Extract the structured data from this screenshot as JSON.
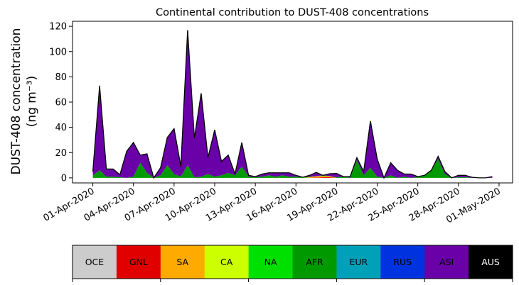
{
  "chart_data": {
    "type": "area",
    "title": "Continental contribution to DUST-408 concentrations",
    "ylabel_line1": "DUST-408 concentration",
    "ylabel_line2": "(ng m⁻³)",
    "xlabel": "",
    "ylim": [
      -4,
      124
    ],
    "y_ticks": [
      0,
      20,
      40,
      60,
      80,
      100,
      120
    ],
    "x_ticks": [
      "01-Apr-2020",
      "04-Apr-2020",
      "07-Apr-2020",
      "10-Apr-2020",
      "13-Apr-2020",
      "16-Apr-2020",
      "19-Apr-2020",
      "22-Apr-2020",
      "25-Apr-2020",
      "28-Apr-2020",
      "01-May-2020"
    ],
    "x_tick_days": [
      0,
      3,
      6,
      9,
      12,
      15,
      18,
      21,
      24,
      27,
      30
    ],
    "xlim_days": [
      -1.5,
      31
    ],
    "grid": false,
    "stacked": true,
    "x_days": [
      0,
      0.5,
      1,
      1.5,
      2,
      2.5,
      3,
      3.5,
      4,
      4.5,
      5,
      5.5,
      6,
      6.5,
      7,
      7.5,
      8,
      8.5,
      9,
      9.5,
      10,
      10.5,
      11,
      11.5,
      12,
      12.5,
      13,
      13.5,
      14,
      14.5,
      15,
      15.5,
      16,
      16.5,
      17,
      17.5,
      18,
      18.5,
      19,
      19.5,
      20,
      20.5,
      21,
      21.5,
      22,
      22.5,
      23,
      23.5,
      24,
      24.5,
      25,
      25.5,
      26,
      26.5,
      27,
      27.5,
      28,
      28.5,
      29,
      29.5
    ],
    "series": [
      {
        "name": "OCE",
        "color": "#cccccc",
        "values": [
          0,
          0,
          0,
          0,
          0,
          0,
          0,
          0,
          0,
          0,
          0,
          0,
          0,
          0,
          0,
          0,
          0,
          0,
          0,
          0,
          0,
          0,
          0,
          0,
          0,
          0,
          0,
          0,
          0,
          0,
          0,
          0,
          0,
          0,
          0,
          0,
          0,
          0,
          0,
          0,
          0,
          0,
          0,
          0,
          0,
          0,
          0,
          0,
          0,
          0,
          0,
          0,
          0,
          0,
          0,
          0,
          0,
          0,
          0,
          0
        ]
      },
      {
        "name": "GNL",
        "color": "#e10000",
        "values": [
          0,
          0,
          0,
          0,
          0,
          0,
          0,
          0,
          0,
          0,
          0,
          0,
          0,
          0,
          0,
          0,
          0,
          0,
          0,
          0,
          0,
          0,
          0,
          0,
          0,
          0,
          0,
          0,
          0,
          0,
          0,
          0,
          0,
          0.3,
          0.5,
          0.5,
          0,
          0,
          0,
          0,
          0,
          0,
          0,
          0,
          0,
          0,
          0,
          0,
          0,
          0,
          0,
          0,
          0,
          0,
          0,
          0,
          0,
          0,
          0,
          0
        ]
      },
      {
        "name": "SA",
        "color": "#ffaa00",
        "values": [
          0,
          0,
          0,
          0,
          0,
          0,
          0,
          0,
          0,
          0,
          0,
          0,
          0,
          0,
          0,
          0,
          0,
          0,
          0,
          0,
          0,
          0,
          0,
          0,
          0,
          0,
          0,
          0,
          0,
          0,
          0,
          0,
          0.5,
          1,
          1,
          0.8,
          0,
          0,
          0,
          0,
          0,
          0,
          0,
          0,
          0,
          0,
          0,
          0,
          0,
          0,
          0,
          0,
          0,
          0,
          0,
          0,
          0,
          0,
          0,
          0
        ]
      },
      {
        "name": "CA",
        "color": "#ccff00",
        "values": [
          0,
          0,
          0,
          0,
          0,
          0,
          0,
          0,
          0,
          0,
          0,
          0,
          0,
          0,
          0,
          0,
          0,
          0,
          0,
          0,
          0,
          0,
          0,
          0,
          0,
          0,
          0,
          0,
          0,
          0,
          0,
          0,
          0,
          0,
          0,
          0,
          0,
          0,
          0,
          0,
          0,
          0,
          0,
          0,
          0,
          0,
          0,
          0,
          0,
          0,
          0,
          0,
          0,
          0,
          0,
          0,
          0,
          0,
          0,
          0
        ]
      },
      {
        "name": "NA",
        "color": "#00e000",
        "values": [
          0,
          0,
          0,
          0,
          0,
          0,
          0,
          0,
          0,
          0,
          0,
          0,
          0,
          0,
          0,
          0,
          0,
          0,
          0,
          0,
          0,
          0,
          0,
          0,
          0,
          0,
          0,
          0,
          0,
          0,
          0,
          0,
          0,
          0,
          0,
          0,
          0,
          0,
          0,
          0,
          0,
          0,
          0,
          0,
          0,
          0,
          0,
          0,
          0,
          0,
          0,
          0,
          0,
          0,
          0,
          0,
          0,
          0,
          0,
          0
        ]
      },
      {
        "name": "AFR",
        "color": "#009a00",
        "values": [
          2,
          6,
          1,
          1,
          0.5,
          0,
          1,
          12,
          4,
          0,
          2,
          10,
          3,
          1,
          10,
          0.5,
          1,
          3,
          1,
          2,
          4,
          2,
          9,
          1,
          0.5,
          1,
          2,
          1,
          2,
          1,
          1,
          0.5,
          0.5,
          0,
          0.5,
          0,
          0.5,
          1,
          0,
          14,
          2,
          8,
          1,
          0,
          2,
          0,
          1,
          0,
          1,
          2,
          6,
          15,
          3,
          0,
          0.5,
          0.5,
          0,
          0,
          0,
          0
        ]
      },
      {
        "name": "EUR",
        "color": "#00a0b8",
        "values": [
          0,
          0,
          0,
          0,
          0,
          0,
          0,
          0,
          0,
          0,
          0,
          0,
          0,
          0,
          0,
          0,
          0,
          0,
          0,
          0,
          0,
          0,
          0,
          0,
          0,
          0,
          0,
          0,
          0,
          0,
          0,
          0,
          0,
          0,
          0,
          0,
          0,
          0,
          0,
          0,
          0,
          0,
          0,
          0,
          0,
          0,
          0,
          0,
          0,
          0,
          0,
          0,
          0,
          0,
          0,
          0,
          0,
          0,
          0,
          0
        ]
      },
      {
        "name": "RUS",
        "color": "#0033e0",
        "values": [
          0,
          0,
          0,
          0,
          0,
          0,
          0,
          0,
          0,
          0,
          0,
          0,
          0,
          0,
          0,
          0,
          0,
          0,
          0,
          0,
          0,
          0,
          0,
          0,
          0,
          0,
          0,
          0,
          0,
          0,
          0,
          0,
          0,
          0,
          0,
          0,
          0,
          0,
          0,
          0,
          0,
          0,
          0,
          0,
          0,
          0,
          0,
          0,
          0,
          0,
          0,
          0,
          0,
          0,
          0,
          0,
          0,
          0,
          0,
          0
        ]
      },
      {
        "name": "ASI",
        "color": "#6a00a8",
        "values": [
          3,
          67,
          6,
          6,
          2,
          21,
          27,
          6,
          15,
          0,
          6,
          22,
          36,
          8,
          107,
          31,
          66,
          13,
          37,
          11,
          14,
          1,
          19,
          1,
          0.5,
          2,
          2,
          3,
          2,
          3,
          1,
          0,
          1,
          3,
          0,
          2,
          3,
          0,
          1,
          2,
          3,
          37,
          14,
          0,
          10,
          6,
          2,
          3,
          0,
          0,
          0,
          2,
          2,
          0,
          1.5,
          1.5,
          0.5,
          0,
          0,
          1
        ]
      },
      {
        "name": "AUS",
        "color": "#000000",
        "values": [
          0,
          0,
          0,
          0,
          0,
          0,
          0,
          0,
          0,
          0,
          0,
          0,
          0,
          0,
          0,
          0,
          0,
          0,
          0,
          0,
          0,
          0,
          0,
          0,
          0,
          0,
          0,
          0,
          0,
          0,
          0,
          0,
          0,
          0,
          0,
          0,
          0,
          0,
          0,
          0,
          0,
          0,
          0,
          0,
          0,
          0,
          0,
          0,
          0,
          0,
          0,
          0,
          0,
          0,
          0,
          0,
          0,
          0,
          0,
          0
        ]
      }
    ],
    "legend_position": "bottom"
  }
}
